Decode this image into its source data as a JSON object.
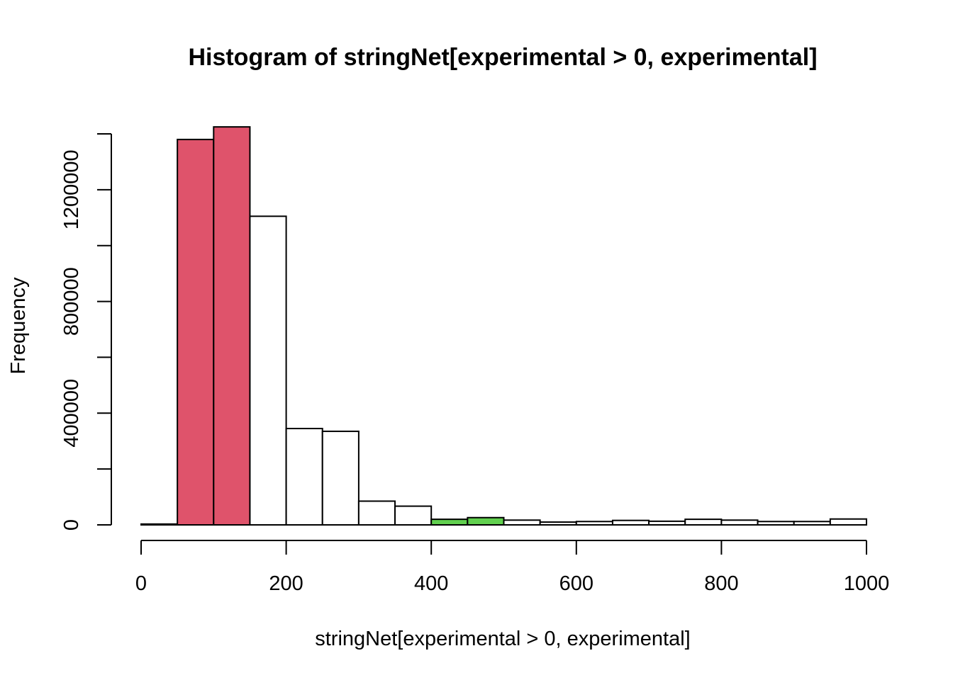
{
  "chart_data": {
    "type": "bar",
    "title": "Histogram of stringNet[experimental > 0, experimental]",
    "xlabel": "stringNet[experimental > 0, experimental]",
    "ylabel": "Frequency",
    "xlim": [
      0,
      1000
    ],
    "ylim": [
      0,
      1400000
    ],
    "x_ticks": [
      0,
      200,
      400,
      600,
      800,
      1000
    ],
    "x_tick_labels": [
      "0",
      "200",
      "400",
      "600",
      "800",
      "1000"
    ],
    "y_ticks": [
      0,
      200000,
      400000,
      600000,
      800000,
      1000000,
      1200000,
      1400000
    ],
    "y_tick_labels": [
      "0",
      "",
      "400000",
      "",
      "800000",
      "",
      "1200000",
      ""
    ],
    "grid": false,
    "colors": {
      "red": "#DF536B",
      "green": "#61D04F",
      "white": "#FFFFFF"
    },
    "bins": [
      {
        "x0": 0,
        "x1": 50,
        "value": 3000,
        "color": "white"
      },
      {
        "x0": 50,
        "x1": 100,
        "value": 1380000,
        "color": "red"
      },
      {
        "x0": 100,
        "x1": 150,
        "value": 1425000,
        "color": "red"
      },
      {
        "x0": 150,
        "x1": 200,
        "value": 1105000,
        "color": "white"
      },
      {
        "x0": 200,
        "x1": 250,
        "value": 345000,
        "color": "white"
      },
      {
        "x0": 250,
        "x1": 300,
        "value": 335000,
        "color": "white"
      },
      {
        "x0": 300,
        "x1": 350,
        "value": 85000,
        "color": "white"
      },
      {
        "x0": 350,
        "x1": 400,
        "value": 67000,
        "color": "white"
      },
      {
        "x0": 400,
        "x1": 450,
        "value": 20000,
        "color": "green"
      },
      {
        "x0": 450,
        "x1": 500,
        "value": 26000,
        "color": "green"
      },
      {
        "x0": 500,
        "x1": 550,
        "value": 17000,
        "color": "white"
      },
      {
        "x0": 550,
        "x1": 600,
        "value": 10000,
        "color": "white"
      },
      {
        "x0": 600,
        "x1": 650,
        "value": 12000,
        "color": "white"
      },
      {
        "x0": 650,
        "x1": 700,
        "value": 16000,
        "color": "white"
      },
      {
        "x0": 700,
        "x1": 750,
        "value": 13000,
        "color": "white"
      },
      {
        "x0": 750,
        "x1": 800,
        "value": 20000,
        "color": "white"
      },
      {
        "x0": 800,
        "x1": 850,
        "value": 17000,
        "color": "white"
      },
      {
        "x0": 850,
        "x1": 900,
        "value": 12000,
        "color": "white"
      },
      {
        "x0": 900,
        "x1": 950,
        "value": 12000,
        "color": "white"
      },
      {
        "x0": 950,
        "x1": 1000,
        "value": 21000,
        "color": "white"
      }
    ]
  }
}
